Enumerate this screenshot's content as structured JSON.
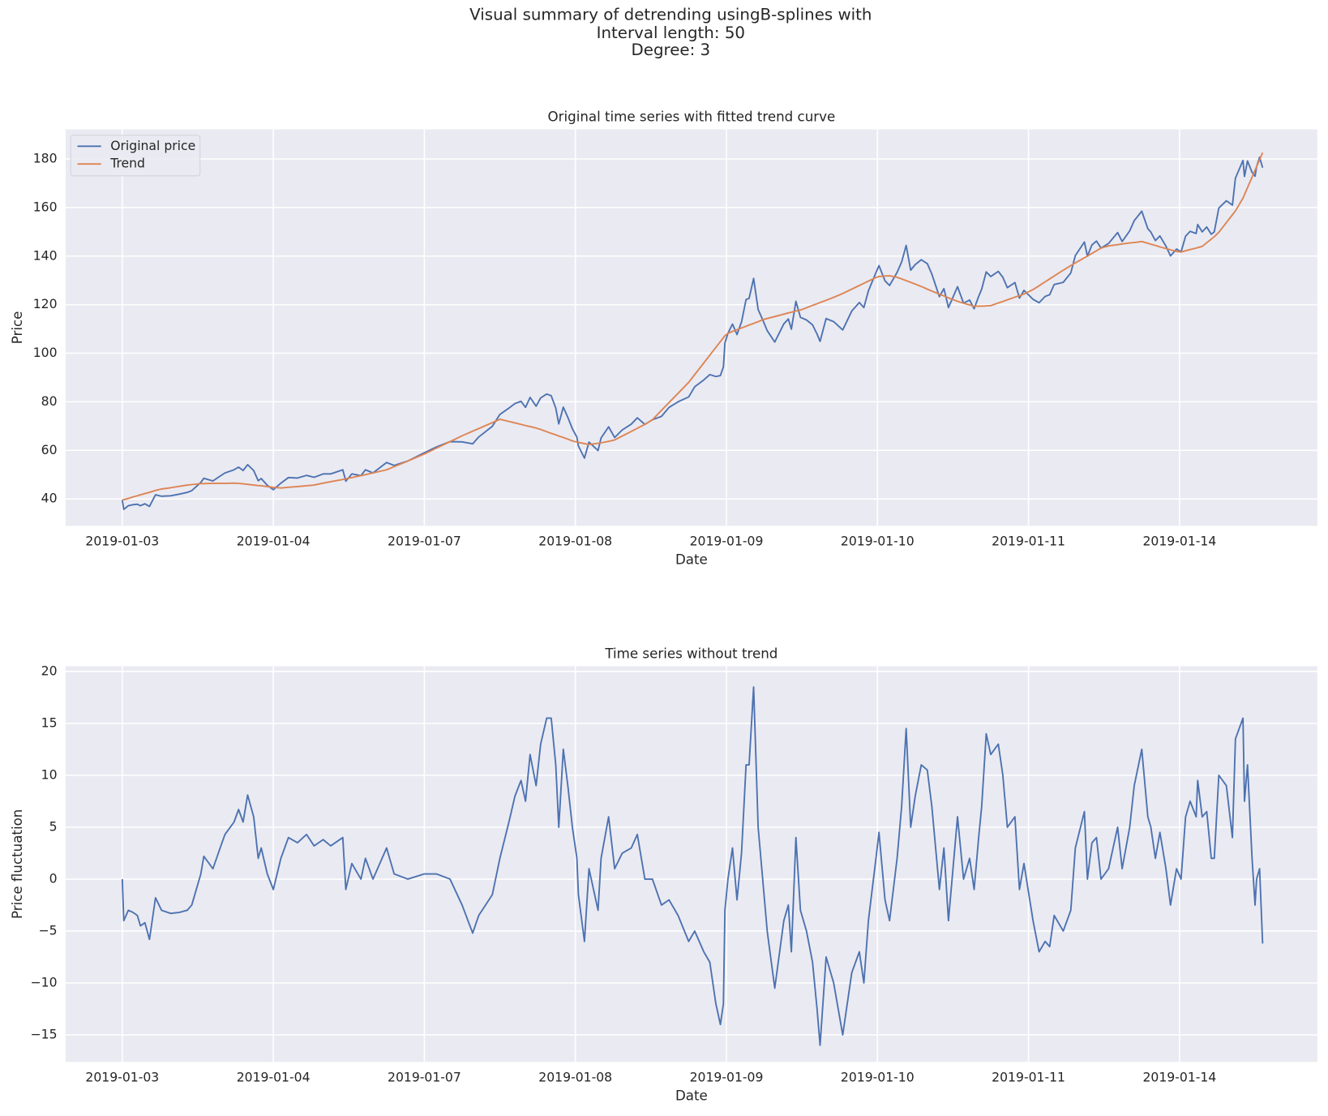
{
  "title": [
    "Visual summary of detrending usingB-splines with",
    "Interval length: 50",
    "Degree: 3"
  ],
  "chart_data": [
    {
      "type": "line",
      "title": "Original time series with fitted trend curve",
      "xlabel": "Date",
      "ylabel": "Price",
      "x": [
        0,
        1,
        4,
        7,
        10,
        12,
        15,
        18,
        22,
        26,
        32,
        38,
        43,
        46,
        52,
        54,
        60,
        66,
        68,
        74,
        77,
        80,
        83,
        87,
        90,
        92,
        96,
        100,
        105,
        110,
        116,
        122,
        127,
        133,
        138,
        146,
        148,
        152,
        158,
        161,
        166,
        175,
        180,
        189,
        200,
        208,
        217,
        225,
        232,
        236,
        245,
        250,
        256,
        260,
        264,
        267,
        270,
        274,
        277,
        281,
        284,
        287,
        289,
        292,
        295,
        298,
        301,
        302,
        306,
        309,
        315,
        317,
        322,
        326,
        331,
        337,
        341,
        346,
        351,
        357,
        362,
        368,
        375,
        379,
        385,
        389,
        393,
        396,
        398,
        399,
        401,
        404,
        407,
        410,
        413,
        415,
        418,
        421,
        424,
        427,
        432,
        438,
        441,
        443,
        446,
        449,
        453,
        457,
        460,
        462,
        466,
        471,
        477,
        483,
        488,
        491,
        494,
        499,
        501,
        505,
        508,
        513,
        516,
        519,
        522,
        525,
        529,
        533,
        536,
        541,
        544,
        547,
        553,
        557,
        561,
        564,
        567,
        569,
        572,
        575,
        580,
        583,
        586,
        591,
        594,
        597,
        603,
        607,
        611,
        614,
        617,
        623,
        628,
        631,
        637,
        639,
        642,
        645,
        648,
        653,
        659,
        662,
        667,
        670,
        675,
        679,
        681,
        684,
        687,
        691,
        694,
        698,
        701,
        704,
        707,
        711,
        712,
        715,
        718,
        721,
        723,
        726,
        731,
        735,
        737,
        742,
        743,
        745,
        748,
        750,
        751,
        753,
        755
      ],
      "series": [
        {
          "name": "Original price",
          "color": "#4c72b0",
          "values": [
            39.5,
            35.7,
            37.2,
            37.6,
            37.8,
            37.2,
            38.0,
            36.9,
            41.7,
            41.1,
            41.3,
            42.0,
            42.7,
            43.4,
            46.8,
            48.5,
            47.4,
            49.9,
            50.7,
            52.0,
            53.1,
            51.7,
            54.1,
            51.7,
            47.5,
            48.4,
            45.6,
            43.8,
            46.5,
            48.8,
            48.6,
            49.7,
            48.9,
            50.3,
            50.3,
            52.0,
            47.3,
            50.3,
            49.6,
            52.0,
            50.7,
            55.0,
            53.8,
            55.6,
            59.0,
            61.4,
            63.6,
            63.5,
            62.7,
            65.5,
            69.9,
            74.8,
            77.4,
            79.3,
            80.2,
            77.7,
            81.8,
            78.2,
            81.6,
            83.2,
            82.5,
            77.4,
            70.9,
            77.8,
            73.6,
            68.9,
            65.4,
            61.8,
            56.8,
            63.4,
            59.9,
            65.1,
            69.7,
            65.3,
            68.4,
            70.8,
            73.4,
            70.7,
            72.6,
            74.0,
            77.7,
            80.0,
            82.0,
            86.2,
            89.0,
            91.2,
            90.4,
            90.8,
            94.4,
            104.2,
            108.2,
            112.0,
            107.7,
            112.9,
            122.1,
            122.6,
            130.8,
            118.0,
            113.8,
            109.3,
            104.6,
            112.1,
            114.1,
            109.9,
            121.4,
            114.8,
            113.7,
            111.7,
            107.9,
            104.9,
            114.3,
            113.0,
            109.6,
            117.4,
            120.9,
            118.8,
            125.7,
            133.2,
            136.1,
            129.8,
            127.9,
            133.3,
            137.6,
            144.4,
            134.2,
            136.5,
            138.5,
            136.9,
            132.6,
            123.3,
            126.6,
            118.8,
            127.4,
            120.6,
            121.9,
            118.3,
            123.4,
            126.4,
            133.5,
            131.6,
            133.7,
            131.3,
            127.0,
            129.1,
            122.7,
            125.9,
            122.2,
            120.8,
            123.4,
            124.1,
            128.3,
            129.2,
            133.1,
            140.2,
            145.8,
            140.0,
            144.6,
            146.2,
            143.3,
            145.2,
            149.7,
            146.0,
            150.4,
            154.6,
            158.5,
            151.3,
            149.9,
            146.4,
            148.3,
            144.1,
            140.1,
            142.9,
            141.7,
            148.2,
            150.2,
            149.3,
            153.0,
            150.0,
            152.0,
            149.0,
            150.0,
            159.8,
            162.8,
            161.0,
            172.1,
            179.4,
            172.8,
            179.2,
            174.5,
            172.9,
            176.8,
            180.7,
            176.4
          ]
        },
        {
          "name": "Trend",
          "color": "#dd8452",
          "values": [
            39.5,
            39.7,
            40.2,
            40.8,
            41.3,
            41.7,
            42.2,
            42.7,
            43.5,
            44.1,
            44.6,
            45.2,
            45.7,
            45.9,
            46.3,
            46.3,
            46.4,
            46.4,
            46.4,
            46.5,
            46.4,
            46.2,
            46.0,
            45.7,
            45.5,
            45.4,
            45.1,
            44.8,
            44.5,
            44.8,
            45.1,
            45.4,
            45.7,
            46.5,
            47.1,
            48.0,
            48.3,
            48.8,
            49.6,
            50.0,
            50.7,
            52.0,
            53.3,
            55.6,
            58.5,
            60.9,
            63.6,
            66.0,
            67.9,
            69.0,
            71.4,
            72.8,
            71.9,
            71.3,
            70.7,
            70.2,
            69.8,
            69.2,
            68.6,
            67.7,
            67.0,
            66.4,
            65.9,
            65.3,
            64.6,
            63.9,
            63.4,
            63.3,
            62.8,
            62.4,
            62.9,
            63.1,
            63.7,
            64.3,
            65.9,
            67.8,
            69.1,
            70.7,
            72.6,
            76.5,
            79.7,
            83.5,
            88.0,
            91.2,
            96.0,
            99.2,
            102.4,
            104.8,
            106.4,
            107.2,
            108.2,
            109.0,
            109.7,
            110.4,
            111.1,
            111.6,
            112.3,
            113.0,
            113.8,
            114.3,
            115.1,
            116.1,
            116.6,
            116.9,
            117.4,
            117.8,
            118.7,
            119.7,
            120.4,
            120.9,
            121.8,
            123.0,
            124.6,
            126.4,
            127.9,
            128.8,
            129.7,
            131.2,
            131.6,
            131.8,
            131.9,
            131.3,
            130.6,
            129.9,
            129.2,
            128.5,
            127.5,
            126.4,
            125.6,
            124.3,
            123.6,
            122.8,
            121.4,
            120.6,
            119.9,
            119.3,
            119.4,
            119.4,
            119.5,
            119.6,
            120.7,
            121.3,
            122.0,
            123.1,
            123.7,
            124.4,
            126.2,
            127.8,
            129.4,
            130.6,
            131.8,
            134.2,
            136.1,
            137.2,
            139.3,
            140.0,
            141.1,
            142.2,
            143.3,
            144.2,
            144.7,
            145.0,
            145.4,
            145.6,
            146.0,
            145.3,
            144.9,
            144.4,
            143.8,
            143.1,
            142.6,
            141.9,
            141.7,
            142.2,
            142.7,
            143.3,
            143.5,
            144.0,
            145.5,
            147.0,
            148.0,
            149.8,
            153.8,
            157.0,
            158.6,
            163.9,
            165.3,
            168.2,
            172.5,
            175.4,
            176.8,
            179.7,
            182.6
          ]
        }
      ],
      "xlim": [
        -37.5,
        791.2
      ],
      "ylim": [
        28.9,
        192.2
      ],
      "xticks": [
        {
          "value": 0,
          "label": "2019-01-03"
        },
        {
          "value": 100,
          "label": "2019-01-04"
        },
        {
          "value": 200,
          "label": "2019-01-07"
        },
        {
          "value": 300,
          "label": "2019-01-08"
        },
        {
          "value": 400,
          "label": "2019-01-09"
        },
        {
          "value": 500,
          "label": "2019-01-10"
        },
        {
          "value": 600,
          "label": "2019-01-11"
        },
        {
          "value": 700,
          "label": "2019-01-14"
        }
      ],
      "yticks": [
        40,
        60,
        80,
        100,
        120,
        140,
        160,
        180
      ],
      "grid": true,
      "legend": "upper left"
    },
    {
      "type": "line",
      "title": "Time series without trend",
      "xlabel": "Date",
      "ylabel": "Price fluctuation",
      "x": [
        0,
        1,
        4,
        7,
        10,
        12,
        15,
        18,
        22,
        26,
        32,
        38,
        43,
        46,
        52,
        54,
        60,
        66,
        68,
        74,
        77,
        80,
        83,
        87,
        90,
        92,
        96,
        100,
        105,
        110,
        116,
        122,
        127,
        133,
        138,
        146,
        148,
        152,
        158,
        161,
        166,
        175,
        180,
        189,
        200,
        208,
        217,
        225,
        232,
        236,
        245,
        250,
        256,
        260,
        264,
        267,
        270,
        274,
        277,
        281,
        284,
        287,
        289,
        292,
        295,
        298,
        301,
        302,
        306,
        309,
        315,
        317,
        322,
        326,
        331,
        337,
        341,
        346,
        351,
        357,
        362,
        368,
        375,
        379,
        385,
        389,
        393,
        396,
        398,
        399,
        401,
        404,
        407,
        410,
        413,
        415,
        418,
        421,
        424,
        427,
        432,
        438,
        441,
        443,
        446,
        449,
        453,
        457,
        460,
        462,
        466,
        471,
        477,
        483,
        488,
        491,
        494,
        499,
        501,
        505,
        508,
        513,
        516,
        519,
        522,
        525,
        529,
        533,
        536,
        541,
        544,
        547,
        553,
        557,
        561,
        564,
        567,
        569,
        572,
        575,
        580,
        583,
        586,
        591,
        594,
        597,
        603,
        607,
        611,
        614,
        617,
        623,
        628,
        631,
        637,
        639,
        642,
        645,
        648,
        653,
        659,
        662,
        667,
        670,
        675,
        679,
        681,
        684,
        687,
        691,
        694,
        698,
        701,
        704,
        707,
        711,
        712,
        715,
        718,
        721,
        723,
        726,
        731,
        735,
        737,
        742,
        743,
        745,
        748,
        750,
        751,
        753,
        755
      ],
      "series": [
        {
          "color": "#4c72b0",
          "values": [
            0,
            -4,
            -3,
            -3.2,
            -3.5,
            -4.5,
            -4.2,
            -5.8,
            -1.8,
            -3,
            -3.3,
            -3.2,
            -3,
            -2.5,
            0.5,
            2.2,
            1,
            3.5,
            4.3,
            5.5,
            6.7,
            5.5,
            8.1,
            6,
            2,
            3,
            0.5,
            -1,
            2,
            4,
            3.5,
            4.3,
            3.2,
            3.8,
            3.2,
            4,
            -1,
            1.5,
            0,
            2,
            0,
            3,
            0.5,
            0,
            0.5,
            0.5,
            0,
            -2.5,
            -5.2,
            -3.5,
            -1.5,
            2,
            5.5,
            8,
            9.5,
            7.5,
            12,
            9,
            13,
            15.5,
            15.5,
            11,
            5,
            12.5,
            9,
            5,
            2,
            -1.5,
            -6,
            1,
            -3,
            2,
            6,
            1,
            2.5,
            3,
            4.3,
            0,
            0,
            -2.5,
            -2,
            -3.5,
            -6,
            -5,
            -7,
            -8,
            -12,
            -14,
            -12,
            -3,
            0,
            3,
            -2,
            2.5,
            11,
            11,
            18.5,
            5,
            0,
            -5,
            -10.5,
            -4,
            -2.5,
            -7,
            4,
            -3,
            -5,
            -8,
            -12.5,
            -16,
            -7.5,
            -10,
            -15,
            -9,
            -7,
            -10,
            -4,
            2,
            4.5,
            -2,
            -4,
            2,
            7,
            14.5,
            5,
            8,
            11,
            10.5,
            7,
            -1,
            3,
            -4,
            6,
            0,
            2,
            -1,
            4,
            7,
            14,
            12,
            13,
            10,
            5,
            6,
            -1,
            1.5,
            -4,
            -7,
            -6,
            -6.5,
            -3.5,
            -5,
            -3,
            3,
            6.5,
            0,
            3.5,
            4,
            0,
            1,
            5,
            1,
            5,
            9,
            12.5,
            6,
            5,
            2,
            4.5,
            1,
            -2.5,
            1,
            0,
            6,
            7.5,
            6,
            9.5,
            6,
            6.5,
            2,
            2,
            10,
            9,
            4,
            13.5,
            15.5,
            7.5,
            11,
            2,
            -2.5,
            0,
            1,
            -6.2
          ]
        }
      ],
      "xlim": [
        -37.5,
        791.2
      ],
      "ylim": [
        -17.6,
        20.5
      ],
      "xticks": [
        {
          "value": 0,
          "label": "2019-01-03"
        },
        {
          "value": 100,
          "label": "2019-01-04"
        },
        {
          "value": 200,
          "label": "2019-01-07"
        },
        {
          "value": 300,
          "label": "2019-01-08"
        },
        {
          "value": 400,
          "label": "2019-01-09"
        },
        {
          "value": 500,
          "label": "2019-01-10"
        },
        {
          "value": 600,
          "label": "2019-01-11"
        },
        {
          "value": 700,
          "label": "2019-01-14"
        }
      ],
      "yticks": [
        {
          "value": -15,
          "label": "−15"
        },
        {
          "value": -10,
          "label": "−10"
        },
        {
          "value": -5,
          "label": "−5"
        },
        0,
        5,
        10,
        15,
        20
      ],
      "grid": true
    }
  ]
}
